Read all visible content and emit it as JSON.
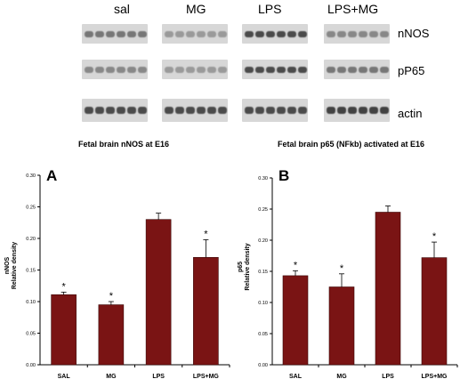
{
  "blot": {
    "groups": [
      "sal",
      "MG",
      "LPS",
      "LPS+MG"
    ],
    "rows": [
      "nNOS",
      "pP65",
      "actin"
    ],
    "band_intensity": {
      "nNOS": [
        0.55,
        0.35,
        0.8,
        0.45
      ],
      "pP65": [
        0.45,
        0.35,
        0.8,
        0.55
      ],
      "actin": [
        0.8,
        0.8,
        0.8,
        0.85
      ]
    }
  },
  "panels": {
    "A": {
      "letter": "A",
      "title": "Fetal brain nNOS at E16"
    },
    "B": {
      "letter": "B",
      "title": "Fetal brain p65 (NFkb) activated at E16"
    }
  },
  "colors": {
    "bar": "#7a1414",
    "bar_edge": "#3a0606"
  },
  "chart_data": [
    {
      "type": "bar",
      "title": "Fetal brain nNOS at E16",
      "categories": [
        "SAL",
        "MG",
        "LPS",
        "LPS+MG"
      ],
      "values": [
        0.111,
        0.095,
        0.23,
        0.17
      ],
      "errors": [
        0.004,
        0.005,
        0.01,
        0.028
      ],
      "significance": [
        "*",
        "*",
        "",
        "*"
      ],
      "ylabel": "nNOS Relative density",
      "ylabel_lines": [
        "nNOS",
        "Relative density"
      ],
      "xlabel": "",
      "ylim": [
        0,
        0.3
      ],
      "yticks": [
        "0.00",
        "0.05",
        "0.10",
        "0.15",
        "0.20",
        "0.25",
        "0.30"
      ],
      "grid": false,
      "legend": "none"
    },
    {
      "type": "bar",
      "title": "Fetal brain p65 (NFkb) activated at E16",
      "categories": [
        "SAL",
        "MG",
        "LPS",
        "LPS+MG"
      ],
      "values": [
        0.143,
        0.125,
        0.245,
        0.172
      ],
      "errors": [
        0.008,
        0.021,
        0.01,
        0.025
      ],
      "significance": [
        "*",
        "*",
        "",
        "*"
      ],
      "ylabel": "p65 Relative density",
      "ylabel_lines": [
        "p65",
        "Relative density"
      ],
      "xlabel": "",
      "ylim": [
        0,
        0.3
      ],
      "yticks": [
        "0.00",
        "0.05",
        "0.10",
        "0.15",
        "0.20",
        "0.25",
        "0.30"
      ],
      "grid": false,
      "legend": "none"
    }
  ]
}
